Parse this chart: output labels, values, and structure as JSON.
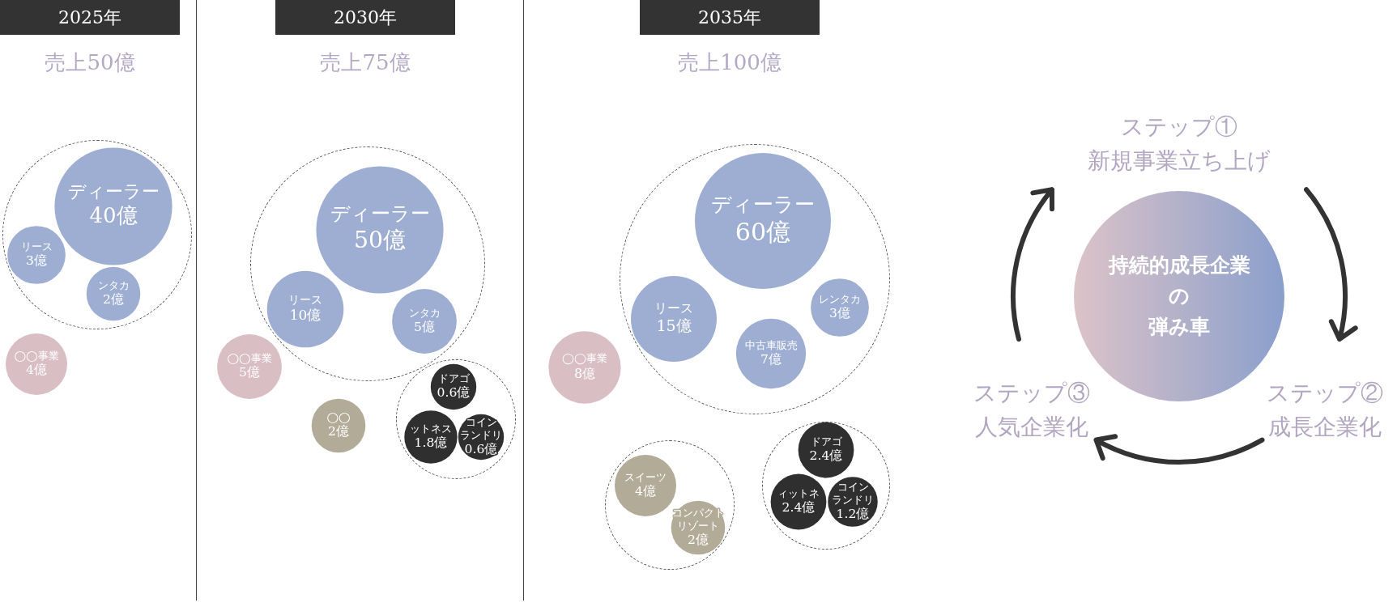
{
  "chart_data": [
    {
      "type": "other",
      "title": "2025年",
      "subtitle": "売上50億",
      "categories": [
        "ディーラー",
        "リース",
        "ンタカ",
        "◯◯事業"
      ],
      "values": [
        40,
        3,
        2,
        4
      ],
      "value_labels": [
        "40億",
        "3億",
        "2億",
        "4億"
      ],
      "colors": [
        "#9daed2",
        "#9daed2",
        "#9daed2",
        "#d9bec4"
      ]
    },
    {
      "type": "other",
      "title": "2030年",
      "subtitle": "売上75億",
      "categories": [
        "ディーラー",
        "リース",
        "ンタカ",
        "◯◯事業",
        "◯◯",
        "ドアゴ",
        "ットネス",
        "コインランドリ"
      ],
      "values": [
        50,
        10,
        5,
        5,
        2,
        0.6,
        1.8,
        0.6
      ],
      "value_labels": [
        "50億",
        "10億",
        "5億",
        "5億",
        "2億",
        "0.6億",
        "1.8億",
        "0.6億"
      ],
      "colors": [
        "#9daed2",
        "#9daed2",
        "#9daed2",
        "#d9bec4",
        "#b2ab98",
        "#2f2f2f",
        "#2f2f2f",
        "#2f2f2f"
      ]
    },
    {
      "type": "other",
      "title": "2035年",
      "subtitle": "売上100億",
      "categories": [
        "ディーラー",
        "リース",
        "中古車販売",
        "レンタカ",
        "◯◯事業",
        "スイーツ",
        "コンパクトリゾート",
        "ドアゴ",
        "ィットネ",
        "コインランドリ"
      ],
      "values": [
        60,
        15,
        7,
        3,
        8,
        4,
        2,
        2.4,
        2.4,
        1.2
      ],
      "value_labels": [
        "60億",
        "15億",
        "7億",
        "3億",
        "8億",
        "4億",
        "2億",
        "2.4億",
        "2.4億",
        "1.2億"
      ],
      "colors": [
        "#9daed2",
        "#9daed2",
        "#9daed2",
        "#9daed2",
        "#d9bec4",
        "#b2ab98",
        "#b2ab98",
        "#2f2f2f",
        "#2f2f2f",
        "#2f2f2f"
      ]
    },
    {
      "type": "other",
      "annotations": [
        "ステップ①\n新規事業立ち上げ",
        "ステップ②\n成長企業化",
        "ステップ③\n人気企業化",
        "持続的成長企業",
        "の",
        "弾み車"
      ]
    }
  ]
}
